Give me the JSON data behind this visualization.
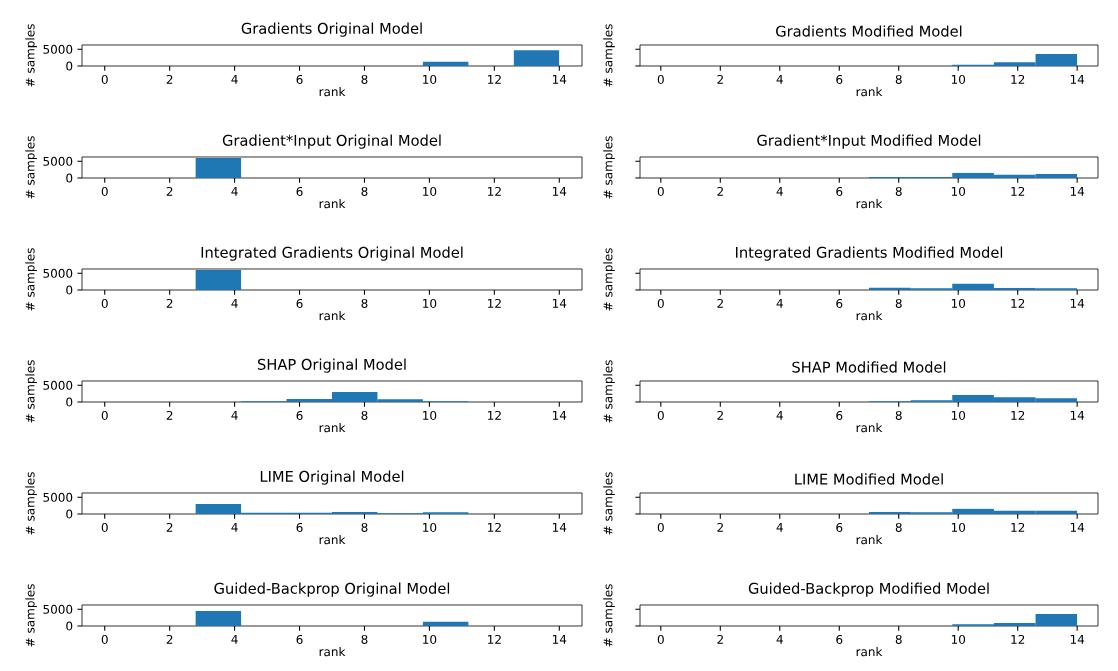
{
  "chart_data": [
    {
      "type": "histogram",
      "title": "Gradients Original Model",
      "xlabel": "rank",
      "ylabel": "# samples",
      "bins": [
        0,
        1.4,
        2.8,
        4.2,
        5.6,
        7.0,
        8.4,
        9.8,
        11.2,
        12.6,
        14
      ],
      "values": [
        0,
        0,
        0,
        0,
        0,
        0,
        0,
        1300,
        0,
        4700
      ],
      "color": "#1f77b4",
      "xlim": [
        -0.7,
        14.7
      ],
      "ylim": [
        0,
        6300
      ],
      "xticks": [
        0,
        2,
        4,
        6,
        8,
        10,
        12,
        14
      ],
      "yticks": [
        0,
        5000
      ]
    },
    {
      "type": "histogram",
      "title": "Gradients Modified Model",
      "xlabel": "rank",
      "ylabel": "# samples",
      "bins": [
        0,
        1.4,
        2.8,
        4.2,
        5.6,
        7.0,
        8.4,
        9.8,
        11.2,
        12.6,
        14
      ],
      "values": [
        0,
        0,
        0,
        0,
        0,
        0,
        0,
        400,
        1100,
        3600
      ],
      "color": "#1f77b4",
      "xlim": [
        -0.7,
        14.7
      ],
      "ylim": [
        0,
        6300
      ],
      "xticks": [
        0,
        2,
        4,
        6,
        8,
        10,
        12,
        14
      ],
      "yticks": [
        0,
        5000
      ],
      "tick_labels": "x"
    },
    {
      "type": "histogram",
      "title": "Gradient*Input Original Model",
      "xlabel": "rank",
      "ylabel": "# samples",
      "bins": [
        0,
        1.4,
        2.8,
        4.2,
        5.6,
        7.0,
        8.4,
        9.8,
        11.2,
        12.6,
        14
      ],
      "values": [
        0,
        0,
        6000,
        0,
        0,
        0,
        0,
        0,
        0,
        0
      ],
      "color": "#1f77b4",
      "xlim": [
        -0.7,
        14.7
      ],
      "ylim": [
        0,
        6300
      ],
      "xticks": [
        0,
        2,
        4,
        6,
        8,
        10,
        12,
        14
      ],
      "yticks": [
        0,
        5000
      ]
    },
    {
      "type": "histogram",
      "title": "Gradient*Input Modified Model",
      "xlabel": "rank",
      "ylabel": "# samples",
      "bins": [
        0,
        1.4,
        2.8,
        4.2,
        5.6,
        7.0,
        8.4,
        9.8,
        11.2,
        12.6,
        14
      ],
      "values": [
        0,
        0,
        0,
        0,
        0,
        300,
        300,
        1600,
        1000,
        1200
      ],
      "color": "#1f77b4",
      "xlim": [
        -0.7,
        14.7
      ],
      "ylim": [
        0,
        6300
      ],
      "xticks": [
        0,
        2,
        4,
        6,
        8,
        10,
        12,
        14
      ],
      "yticks": [
        0,
        5000
      ],
      "tick_labels": "x"
    },
    {
      "type": "histogram",
      "title": "Integrated Gradients Original Model",
      "xlabel": "rank",
      "ylabel": "# samples",
      "bins": [
        0,
        1.4,
        2.8,
        4.2,
        5.6,
        7.0,
        8.4,
        9.8,
        11.2,
        12.6,
        14
      ],
      "values": [
        0,
        0,
        6000,
        0,
        0,
        0,
        0,
        0,
        0,
        0
      ],
      "color": "#1f77b4",
      "xlim": [
        -0.7,
        14.7
      ],
      "ylim": [
        0,
        6300
      ],
      "xticks": [
        0,
        2,
        4,
        6,
        8,
        10,
        12,
        14
      ],
      "yticks": [
        0,
        5000
      ]
    },
    {
      "type": "histogram",
      "title": "Integrated Gradients Modified Model",
      "xlabel": "rank",
      "ylabel": "# samples",
      "bins": [
        0,
        1.4,
        2.8,
        4.2,
        5.6,
        7.0,
        8.4,
        9.8,
        11.2,
        12.6,
        14
      ],
      "values": [
        0,
        0,
        0,
        0,
        0,
        700,
        500,
        1900,
        600,
        500
      ],
      "color": "#1f77b4",
      "xlim": [
        -0.7,
        14.7
      ],
      "ylim": [
        0,
        6300
      ],
      "xticks": [
        0,
        2,
        4,
        6,
        8,
        10,
        12,
        14
      ],
      "yticks": [
        0,
        5000
      ],
      "tick_labels": "x"
    },
    {
      "type": "histogram",
      "title": "SHAP Original Model",
      "xlabel": "rank",
      "ylabel": "# samples",
      "bins": [
        0,
        1.4,
        2.8,
        4.2,
        5.6,
        7.0,
        8.4,
        9.8,
        11.2,
        12.6,
        14
      ],
      "values": [
        0,
        0,
        0,
        200,
        900,
        3000,
        800,
        200,
        0,
        0
      ],
      "color": "#1f77b4",
      "xlim": [
        -0.7,
        14.7
      ],
      "ylim": [
        0,
        6300
      ],
      "xticks": [
        0,
        2,
        4,
        6,
        8,
        10,
        12,
        14
      ],
      "yticks": [
        0,
        5000
      ]
    },
    {
      "type": "histogram",
      "title": "SHAP Modified Model",
      "xlabel": "rank",
      "ylabel": "# samples",
      "bins": [
        0,
        1.4,
        2.8,
        4.2,
        5.6,
        7.0,
        8.4,
        9.8,
        11.2,
        12.6,
        14
      ],
      "values": [
        0,
        0,
        0,
        0,
        0,
        200,
        500,
        2100,
        1400,
        1100
      ],
      "color": "#1f77b4",
      "xlim": [
        -0.7,
        14.7
      ],
      "ylim": [
        0,
        6300
      ],
      "xticks": [
        0,
        2,
        4,
        6,
        8,
        10,
        12,
        14
      ],
      "yticks": [
        0,
        5000
      ],
      "tick_labels": "x"
    },
    {
      "type": "histogram",
      "title": "LIME Original Model",
      "xlabel": "rank",
      "ylabel": "# samples",
      "bins": [
        0,
        1.4,
        2.8,
        4.2,
        5.6,
        7.0,
        8.4,
        9.8,
        11.2,
        12.6,
        14
      ],
      "values": [
        0,
        0,
        3000,
        400,
        400,
        600,
        200,
        500,
        0,
        0
      ],
      "color": "#1f77b4",
      "xlim": [
        -0.7,
        14.7
      ],
      "ylim": [
        0,
        6300
      ],
      "xticks": [
        0,
        2,
        4,
        6,
        8,
        10,
        12,
        14
      ],
      "yticks": [
        0,
        5000
      ]
    },
    {
      "type": "histogram",
      "title": "LIME Modified Model",
      "xlabel": "rank",
      "ylabel": "# samples",
      "bins": [
        0,
        1.4,
        2.8,
        4.2,
        5.6,
        7.0,
        8.4,
        9.8,
        11.2,
        12.6,
        14
      ],
      "values": [
        0,
        0,
        0,
        0,
        0,
        600,
        500,
        1600,
        1000,
        1000
      ],
      "color": "#1f77b4",
      "xlim": [
        -0.7,
        14.7
      ],
      "ylim": [
        0,
        6300
      ],
      "xticks": [
        0,
        2,
        4,
        6,
        8,
        10,
        12,
        14
      ],
      "yticks": [
        0,
        5000
      ],
      "tick_labels": "x"
    },
    {
      "type": "histogram",
      "title": "Guided-Backprop Original Model",
      "xlabel": "rank",
      "ylabel": "# samples",
      "bins": [
        0,
        1.4,
        2.8,
        4.2,
        5.6,
        7.0,
        8.4,
        9.8,
        11.2,
        12.6,
        14
      ],
      "values": [
        0,
        0,
        4500,
        0,
        0,
        0,
        0,
        1300,
        0,
        0
      ],
      "color": "#1f77b4",
      "xlim": [
        -0.7,
        14.7
      ],
      "ylim": [
        0,
        6300
      ],
      "xticks": [
        0,
        2,
        4,
        6,
        8,
        10,
        12,
        14
      ],
      "yticks": [
        0,
        5000
      ]
    },
    {
      "type": "histogram",
      "title": "Guided-Backprop Modified Model",
      "xlabel": "rank",
      "ylabel": "# samples",
      "bins": [
        0,
        1.4,
        2.8,
        4.2,
        5.6,
        7.0,
        8.4,
        9.8,
        11.2,
        12.6,
        14
      ],
      "values": [
        0,
        0,
        0,
        0,
        0,
        0,
        0,
        500,
        900,
        3600
      ],
      "color": "#1f77b4",
      "xlim": [
        -0.7,
        14.7
      ],
      "ylim": [
        0,
        6300
      ],
      "xticks": [
        0,
        2,
        4,
        6,
        8,
        10,
        12,
        14
      ],
      "yticks": [
        0,
        5000
      ],
      "tick_labels": "x"
    }
  ]
}
